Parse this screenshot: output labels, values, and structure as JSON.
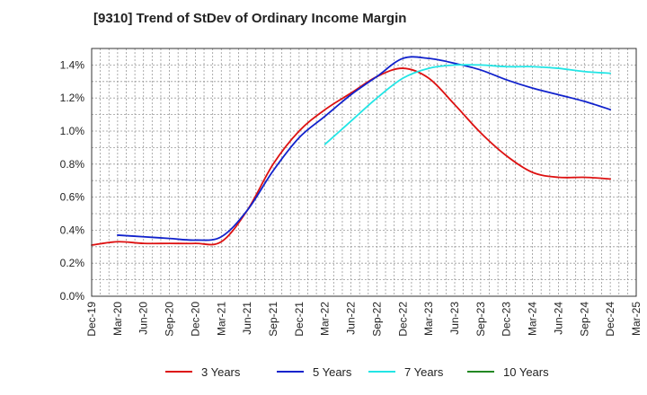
{
  "chart_data": {
    "type": "line",
    "title": "[9310]  Trend of StDev of Ordinary Income Margin",
    "x_ticks": [
      "Dec-19",
      "Mar-20",
      "Jun-20",
      "Sep-20",
      "Dec-20",
      "Mar-21",
      "Jun-21",
      "Sep-21",
      "Dec-21",
      "Mar-22",
      "Jun-22",
      "Sep-22",
      "Dec-22",
      "Mar-23",
      "Jun-23",
      "Sep-23",
      "Dec-23",
      "Mar-24",
      "Jun-24",
      "Sep-24",
      "Dec-24",
      "Mar-25"
    ],
    "y_ticks": [
      "0.0%",
      "0.2%",
      "0.4%",
      "0.6%",
      "0.8%",
      "1.0%",
      "1.2%",
      "1.4%"
    ],
    "ylim": [
      0,
      1.5
    ],
    "y_unit": "%",
    "grid": true,
    "legend_position": "bottom",
    "series": [
      {
        "name": "3 Years",
        "color": "#dd1111",
        "x": [
          "Dec-19",
          "Mar-20",
          "Jun-20",
          "Sep-20",
          "Dec-20",
          "Mar-21",
          "Jun-21",
          "Sep-21",
          "Dec-21",
          "Mar-22",
          "Jun-22",
          "Sep-22",
          "Dec-22",
          "Mar-23",
          "Jun-23",
          "Sep-23",
          "Dec-23",
          "Mar-24",
          "Jun-24",
          "Sep-24",
          "Dec-24"
        ],
        "values": [
          0.31,
          0.33,
          0.32,
          0.32,
          0.32,
          0.33,
          0.52,
          0.8,
          1.0,
          1.13,
          1.23,
          1.33,
          1.38,
          1.32,
          1.16,
          0.99,
          0.85,
          0.75,
          0.72,
          0.72,
          0.71
        ]
      },
      {
        "name": "5 Years",
        "color": "#1122cc",
        "x": [
          "Mar-20",
          "Jun-20",
          "Sep-20",
          "Dec-20",
          "Mar-21",
          "Jun-21",
          "Sep-21",
          "Dec-21",
          "Mar-22",
          "Jun-22",
          "Sep-22",
          "Dec-22",
          "Mar-23",
          "Jun-23",
          "Sep-23",
          "Dec-23",
          "Mar-24",
          "Jun-24",
          "Sep-24",
          "Dec-24"
        ],
        "values": [
          0.37,
          0.36,
          0.35,
          0.34,
          0.36,
          0.52,
          0.76,
          0.96,
          1.09,
          1.22,
          1.33,
          1.44,
          1.44,
          1.41,
          1.37,
          1.31,
          1.26,
          1.22,
          1.18,
          1.13
        ]
      },
      {
        "name": "7 Years",
        "color": "#22e5e5",
        "x": [
          "Mar-22",
          "Jun-22",
          "Sep-22",
          "Dec-22",
          "Mar-23",
          "Jun-23",
          "Sep-23",
          "Dec-23",
          "Mar-24",
          "Jun-24",
          "Sep-24",
          "Dec-24"
        ],
        "values": [
          0.92,
          1.06,
          1.2,
          1.32,
          1.38,
          1.4,
          1.4,
          1.39,
          1.39,
          1.38,
          1.36,
          1.35
        ]
      },
      {
        "name": "10 Years",
        "color": "#228822",
        "x": [],
        "values": []
      }
    ]
  }
}
